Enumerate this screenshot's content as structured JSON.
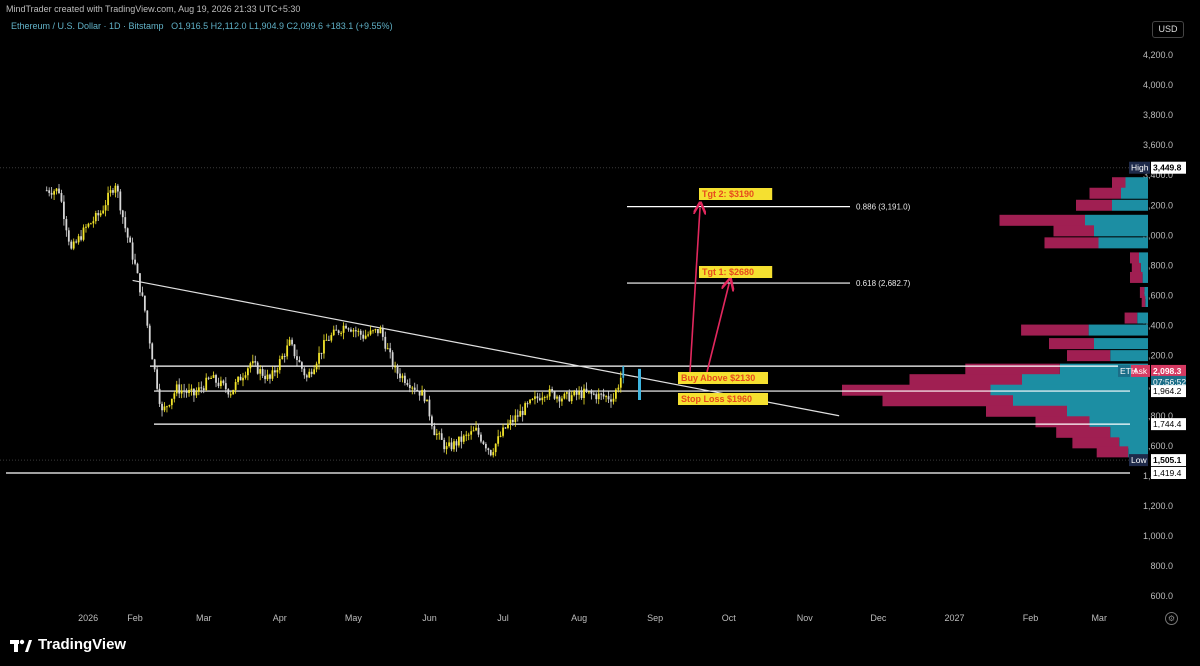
{
  "header": {
    "credit": "MindTrader created with TradingView.com, Aug 19, 2026 21:33 UTC+5:30",
    "symbol": "Ethereum / U.S. Dollar · 1D · Bitstamp",
    "ohlc": "O1,916.5  H2,112.0  L1,904.9  C2,099.6  +183.1 (+9.55%)"
  },
  "currency": "USD",
  "brand": "TradingView",
  "colors": {
    "up_candle": "#f2e42a",
    "down_candle": "#f2e42a",
    "volume_profile_up": "#1c8ea3",
    "volume_profile_down": "#a01f52",
    "annotation_arrow": "#e2285e",
    "label_bg": "#f5e030",
    "label_text": "#e74a1d"
  },
  "chart_data": {
    "type": "line",
    "title": "",
    "y_axis": {
      "ticks": [
        600,
        800,
        1000,
        1200,
        1400,
        1600,
        1800,
        2000,
        2200,
        2400,
        2600,
        2800,
        3000,
        3200,
        3400,
        3600,
        3800,
        4000,
        4200
      ],
      "tick_labels": [
        "600.0",
        "800.0",
        "1,000.0",
        "1,200.0",
        "1,400.0",
        "1,600.0",
        "1,800.0",
        "2,000.0",
        "2,200.0",
        "2,400.0",
        "2,600.0",
        "2,800.0",
        "3,000.0",
        "3,200.0",
        "3,400.0",
        "3,600.0",
        "3,800.0",
        "4,000.0",
        "4,200.0"
      ]
    },
    "x_axis": {
      "tick_labels": [
        "2026",
        "Feb",
        "Mar",
        "Apr",
        "May",
        "Jun",
        "Jul",
        "Aug",
        "Sep",
        "Oct",
        "Nov",
        "Dec",
        "2027",
        "Feb",
        "Mar"
      ]
    },
    "price_series": {
      "name": "ETHUSD",
      "x": [
        "2026-01-01",
        "2026-01-06",
        "2026-01-12",
        "2026-01-18",
        "2026-01-24",
        "2026-01-28",
        "2026-02-01",
        "2026-02-05",
        "2026-02-09",
        "2026-02-12",
        "2026-02-18",
        "2026-02-25",
        "2026-03-04",
        "2026-03-12",
        "2026-03-20",
        "2026-03-28",
        "2026-04-05",
        "2026-04-12",
        "2026-04-20",
        "2026-04-28",
        "2026-05-05",
        "2026-05-12",
        "2026-05-18",
        "2026-05-24",
        "2026-05-30",
        "2026-06-03",
        "2026-06-08",
        "2026-06-14",
        "2026-06-20",
        "2026-06-26",
        "2026-07-02",
        "2026-07-10",
        "2026-07-18",
        "2026-07-26",
        "2026-08-03",
        "2026-08-10",
        "2026-08-15",
        "2026-08-19"
      ],
      "y": [
        3300,
        2900,
        3050,
        3150,
        3350,
        3050,
        2800,
        2500,
        2100,
        1820,
        1980,
        1940,
        2050,
        1960,
        2150,
        2040,
        2280,
        2050,
        2300,
        2410,
        2330,
        2370,
        2100,
        2020,
        1930,
        1700,
        1580,
        1640,
        1700,
        1560,
        1720,
        1850,
        1960,
        1920,
        1950,
        1930,
        1920,
        2099.6
      ]
    },
    "horizontal_levels": [
      {
        "label": "Buy Above $2130",
        "value": 2130
      },
      {
        "label": "1,964.2",
        "value": 1964.2
      },
      {
        "label": "1,744.4",
        "value": 1744.4
      },
      {
        "label": "1,419.4",
        "value": 1419.4
      }
    ],
    "fib_levels": [
      {
        "label": "0.886 (3,191.0)",
        "value": 3191.0
      },
      {
        "label": "0.618 (2,682.7)",
        "value": 2682.7
      }
    ],
    "trendline": {
      "from": {
        "date": "2026-01-31",
        "value": 2700
      },
      "to": {
        "date": "2026-11-15",
        "value": 1800
      }
    },
    "annotations": {
      "buy": "Buy Above $2130",
      "stop": "Stop Loss $1960",
      "tgt1": "Tgt 1: $2680",
      "tgt2": "Tgt 2: $3190"
    },
    "price_tags": {
      "high_label": "High",
      "high_value": "3,449.8",
      "ask_label": "Ask",
      "ask_value": "2,098.3",
      "eth_label": "ETH",
      "countdown": "07:56:52",
      "low_label": "Low",
      "low_value": "1,505.1"
    },
    "high": 3449.8,
    "low": 1505.1,
    "volume_profile": [
      {
        "price": 3350,
        "up": 25,
        "down": 15
      },
      {
        "price": 3280,
        "up": 30,
        "down": 35
      },
      {
        "price": 3200,
        "up": 40,
        "down": 40
      },
      {
        "price": 3100,
        "up": 70,
        "down": 95
      },
      {
        "price": 3030,
        "up": 60,
        "down": 45
      },
      {
        "price": 2950,
        "up": 55,
        "down": 60
      },
      {
        "price": 2850,
        "up": 10,
        "down": 10
      },
      {
        "price": 2780,
        "up": 8,
        "down": 10
      },
      {
        "price": 2720,
        "up": 6,
        "down": 14
      },
      {
        "price": 2620,
        "up": 4,
        "down": 5
      },
      {
        "price": 2560,
        "up": 3,
        "down": 4
      },
      {
        "price": 2450,
        "up": 12,
        "down": 14
      },
      {
        "price": 2370,
        "up": 66,
        "down": 75
      },
      {
        "price": 2280,
        "up": 60,
        "down": 50
      },
      {
        "price": 2200,
        "up": 42,
        "down": 48
      },
      {
        "price": 2110,
        "up": 98,
        "down": 105
      },
      {
        "price": 2040,
        "up": 140,
        "down": 125
      },
      {
        "price": 1970,
        "up": 175,
        "down": 165
      },
      {
        "price": 1900,
        "up": 150,
        "down": 145
      },
      {
        "price": 1830,
        "up": 90,
        "down": 90
      },
      {
        "price": 1760,
        "up": 65,
        "down": 60
      },
      {
        "price": 1690,
        "up": 42,
        "down": 60
      },
      {
        "price": 1620,
        "up": 32,
        "down": 52
      },
      {
        "price": 1560,
        "up": 22,
        "down": 35
      }
    ]
  }
}
